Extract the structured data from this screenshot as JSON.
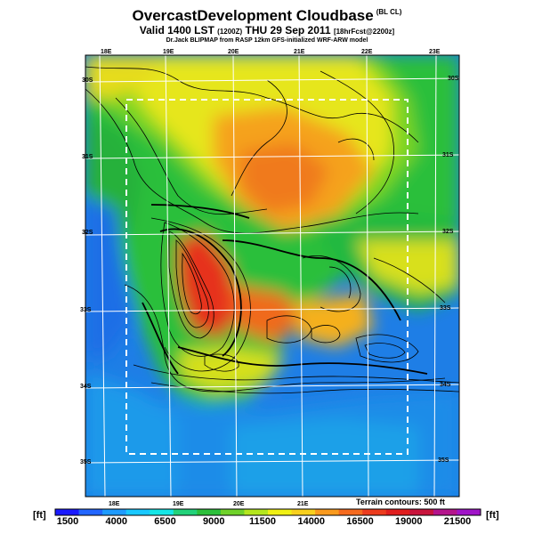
{
  "header": {
    "title": "OvercastDevelopment Cloudbase",
    "title_suffix": "(BL CL)",
    "valid_main": "Valid 1400 LST",
    "valid_utc": "(1200Z)",
    "valid_date": "THU 29 Sep 2011",
    "forecast_tag": "[18hrFcst@2200z]",
    "credit": "Dr.Jack BLIPMAP from RASP 12km GFS-initialized WRF-ARW model"
  },
  "map": {
    "lon_labels_top": [
      "18E",
      "19E",
      "20E",
      "21E",
      "22E",
      "23E"
    ],
    "lon_labels_bottom": [
      "18E",
      "19E",
      "20E",
      "21E"
    ],
    "lat_labels_left": [
      "30S",
      "31S",
      "32S",
      "33S",
      "34S",
      "35S"
    ],
    "lat_labels_right": [
      "30S",
      "31S",
      "32S",
      "33S",
      "34S",
      "35S"
    ],
    "contour_note": "Terrain contours: 500 ft"
  },
  "colorbar": {
    "unit_left": "[ft]",
    "unit_right": "[ft]",
    "tick_labels": [
      "1500",
      "4000",
      "6500",
      "9000",
      "11500",
      "14000",
      "16500",
      "19000",
      "21500"
    ],
    "colors": [
      "#1a1aff",
      "#2266ff",
      "#1e9bff",
      "#19c8ff",
      "#14e6e6",
      "#22d27a",
      "#2cbf3a",
      "#6fd22a",
      "#b4e61e",
      "#f0f014",
      "#f8d01e",
      "#fa9a1e",
      "#f56a1e",
      "#ec3c1e",
      "#e01e1e",
      "#c8143c",
      "#b4148c",
      "#a014c8"
    ]
  },
  "colors": {
    "ocean": "#1e78e8",
    "ocean_deep": "#1e5af0",
    "green": "#2cbf3a",
    "yellow": "#e6e61e",
    "orange": "#f59a1e",
    "red": "#e6321e",
    "frame": "#ffffff"
  }
}
